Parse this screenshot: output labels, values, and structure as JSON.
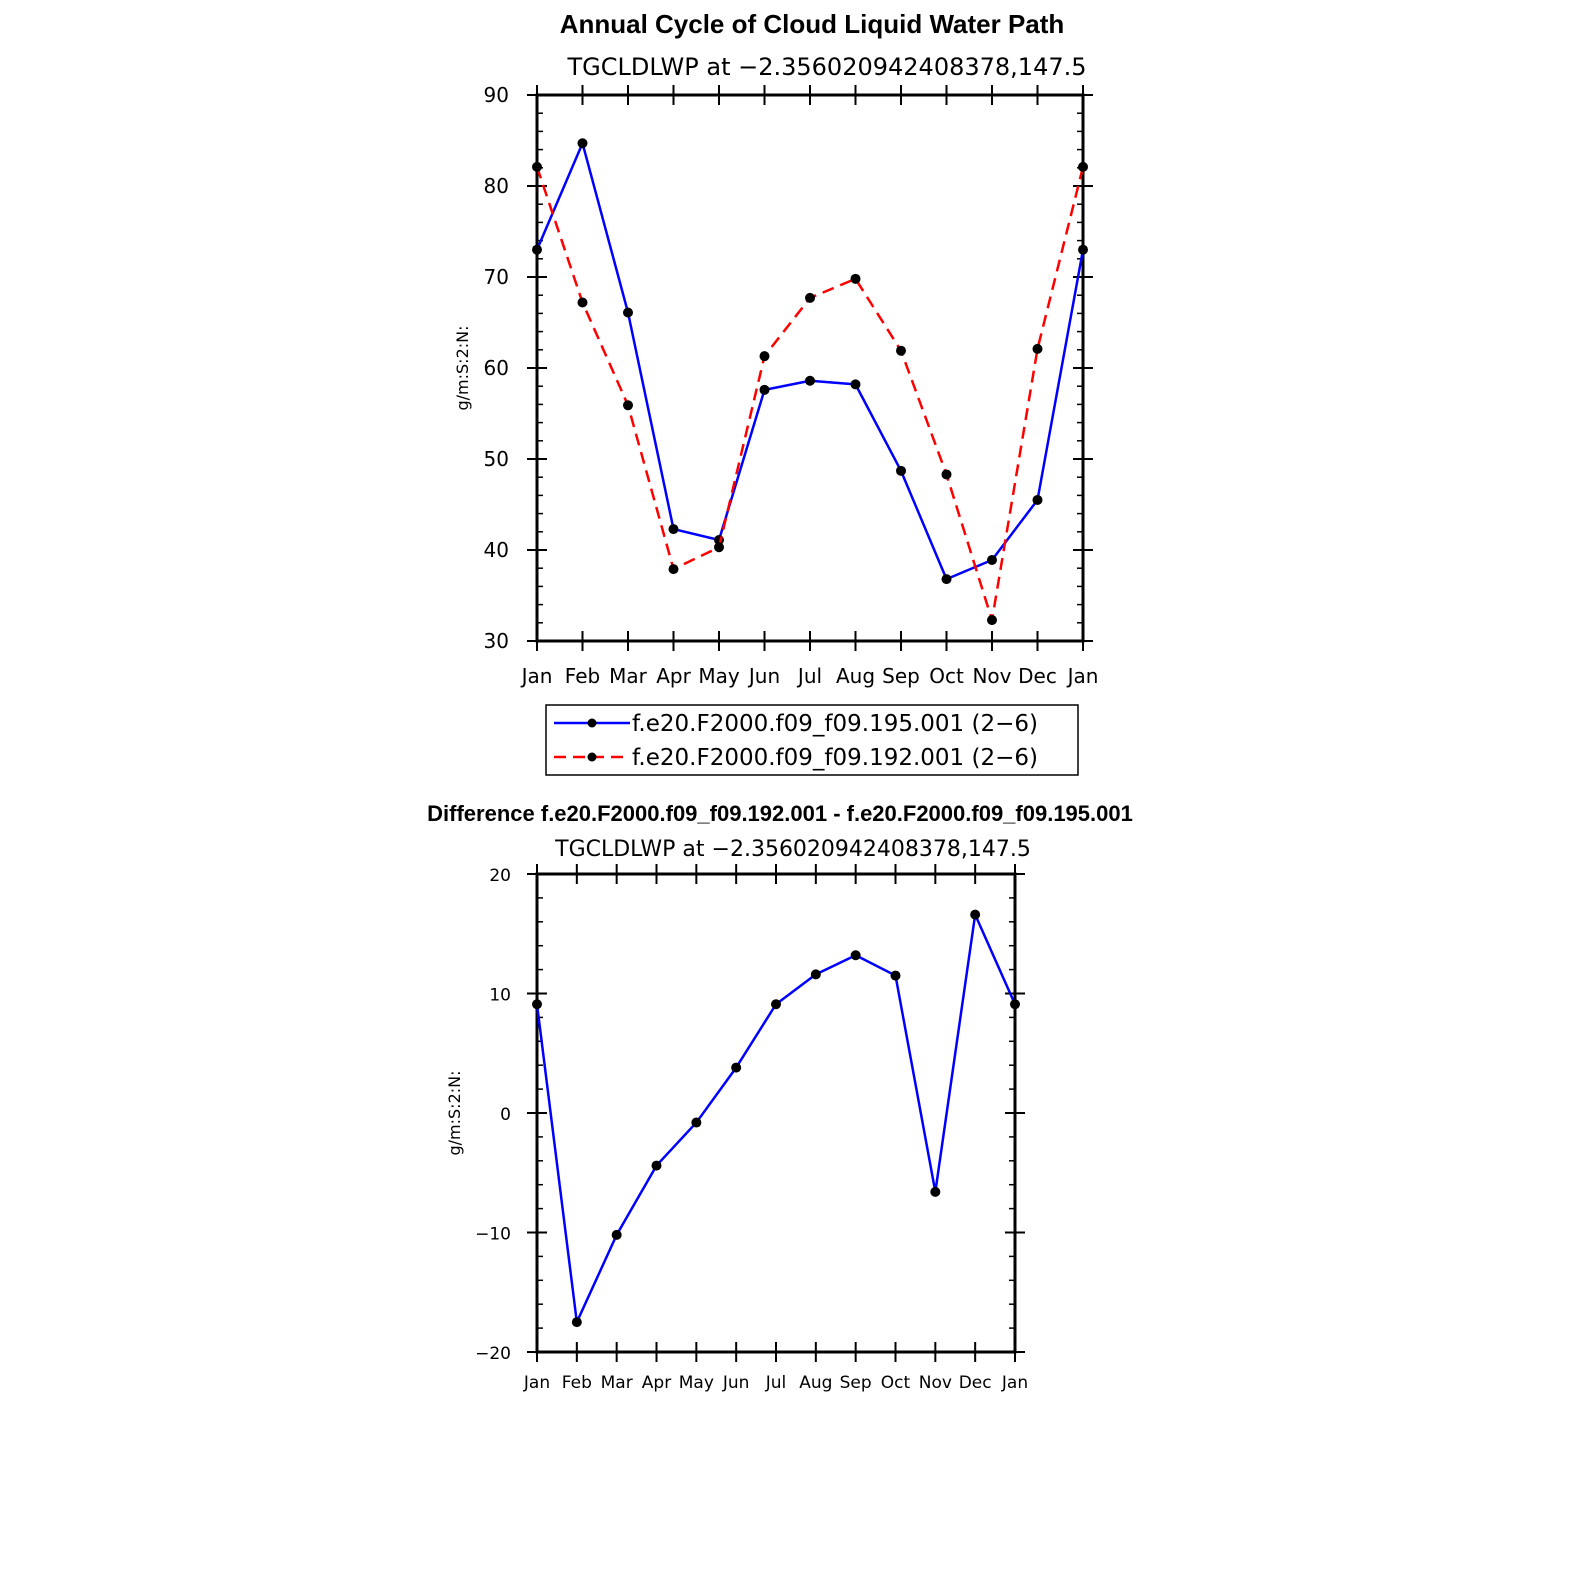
{
  "chart_data": [
    {
      "type": "line",
      "title": "Annual Cycle of Cloud Liquid Water Path",
      "subtitle": "TGCLDLWP at −2.356020942408378,147.5",
      "ylabel": "g/m:S:2:N:",
      "xlabel": "",
      "ylim": [
        30,
        90
      ],
      "yticks": [
        "30",
        "40",
        "50",
        "60",
        "70",
        "80",
        "90"
      ],
      "categories": [
        "Jan",
        "Feb",
        "Mar",
        "Apr",
        "May",
        "Jun",
        "Jul",
        "Aug",
        "Sep",
        "Oct",
        "Nov",
        "Dec",
        "Jan"
      ],
      "legend_position": "below",
      "series": [
        {
          "name": "f.e20.F2000.f09_f09.195.001 (2−6)",
          "color": "#0000ff",
          "style": "solid",
          "values": [
            73.0,
            84.7,
            66.1,
            42.3,
            41.1,
            57.6,
            58.6,
            58.2,
            48.7,
            36.8,
            38.9,
            45.5,
            73.0
          ]
        },
        {
          "name": "f.e20.F2000.f09_f09.192.001 (2−6)",
          "color": "#ff0000",
          "style": "dashed",
          "values": [
            82.1,
            67.2,
            55.9,
            37.9,
            40.3,
            61.3,
            67.7,
            69.8,
            61.9,
            48.3,
            32.3,
            62.1,
            82.1
          ]
        }
      ]
    },
    {
      "type": "line",
      "title": "Difference f.e20.F2000.f09_f09.192.001 - f.e20.F2000.f09_f09.195.001",
      "subtitle": "TGCLDLWP at −2.356020942408378,147.5",
      "ylabel": "g/m:S:2:N:",
      "xlabel": "",
      "ylim": [
        -20,
        20
      ],
      "yticks": [
        "−20",
        "−10",
        "0",
        "10",
        "20"
      ],
      "categories": [
        "Jan",
        "Feb",
        "Mar",
        "Apr",
        "May",
        "Jun",
        "Jul",
        "Aug",
        "Sep",
        "Oct",
        "Nov",
        "Dec",
        "Jan"
      ],
      "series": [
        {
          "name": "Difference",
          "color": "#0000ff",
          "style": "solid",
          "values": [
            9.1,
            -17.5,
            -10.2,
            -4.4,
            -0.8,
            3.8,
            9.1,
            11.6,
            13.2,
            11.5,
            -6.6,
            16.6,
            9.1
          ]
        }
      ]
    }
  ]
}
